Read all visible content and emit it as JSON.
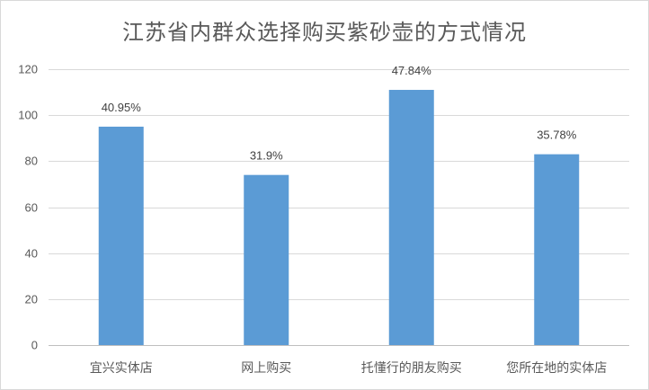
{
  "chart_data": {
    "type": "bar",
    "title": "江苏省内群众选择购买紫砂壶的方式情况",
    "xlabel": "",
    "ylabel": "",
    "categories": [
      "宜兴实体店",
      "网上购买",
      "托懂行的朋友购买",
      "您所在地的实体店"
    ],
    "values": [
      95,
      74,
      111,
      83
    ],
    "data_labels": [
      "40.95%",
      "31.9%",
      "47.84%",
      "35.78%"
    ],
    "ylim": [
      0,
      120
    ],
    "yticks": [
      0,
      20,
      40,
      60,
      80,
      100,
      120
    ],
    "grid": true,
    "legend": "none",
    "bar_color": "#5b9bd5",
    "grid_color": "#d9d9d9"
  }
}
